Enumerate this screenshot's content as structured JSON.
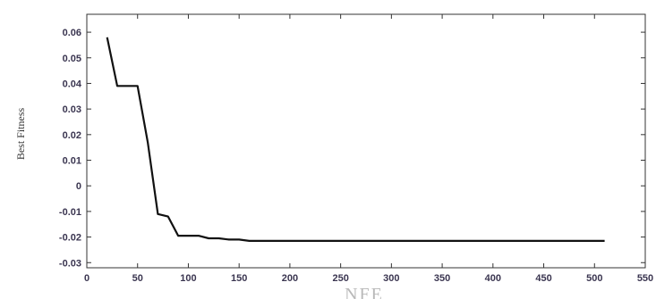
{
  "chart_data": {
    "type": "line",
    "xlabel": "NFE",
    "ylabel": "Best Fitness",
    "xlim": [
      0,
      550
    ],
    "ylim": [
      -0.032,
      0.067
    ],
    "xticks": [
      0,
      50,
      100,
      150,
      200,
      250,
      300,
      350,
      400,
      450,
      500,
      550
    ],
    "yticks": [
      0.06,
      0.05,
      0.04,
      0.03,
      0.02,
      0.01,
      0,
      -0.01,
      -0.02,
      -0.03
    ],
    "ytick_labels": [
      "0.06",
      "0.05",
      "0.04",
      "0.03",
      "0.02",
      "0.01",
      "0",
      "-0.01",
      "-0.02",
      "-0.03"
    ],
    "grid": false,
    "series": [
      {
        "color": "#111111",
        "x": [
          20,
          30,
          40,
          50,
          60,
          70,
          80,
          90,
          100,
          110,
          120,
          130,
          140,
          150,
          160,
          200,
          300,
          400,
          510
        ],
        "y": [
          0.058,
          0.039,
          0.039,
          0.039,
          0.017,
          -0.011,
          -0.012,
          -0.0195,
          -0.0195,
          -0.0195,
          -0.0205,
          -0.0205,
          -0.021,
          -0.021,
          -0.0215,
          -0.0215,
          -0.0215,
          -0.0215,
          -0.0215
        ]
      }
    ]
  }
}
